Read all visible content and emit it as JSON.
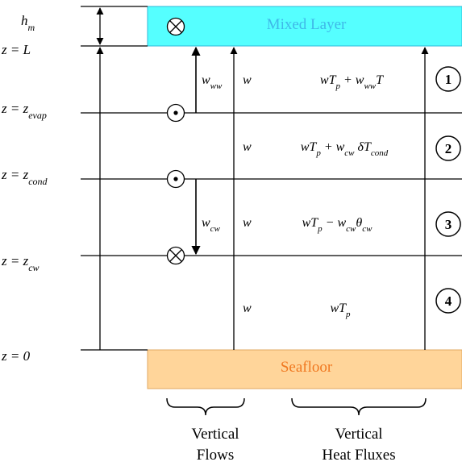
{
  "diagram": {
    "colors": {
      "mixed_layer": "#55ffff",
      "mixed_layer_text": "#3fb8e8",
      "seafloor": "#ffd59a",
      "seafloor_border": "#e0a860",
      "seafloor_text": "#f07820",
      "line": "#000000"
    },
    "mixed_layer_label": "Mixed Layer",
    "seafloor_label": "Seafloor",
    "levels": {
      "hm": "h",
      "hm_sub": "m",
      "L": "z = L",
      "evap_main": "z = z",
      "evap_sub": "evap",
      "cond_main": "z = z",
      "cond_sub": "cond",
      "cw_main": "z = z",
      "cw_sub": "cw",
      "zero": "z = 0"
    },
    "flows": {
      "w_ww_main": "w",
      "w_ww_sub": "ww",
      "w_cw_main": "w",
      "w_cw_sub": "cw",
      "w": "w"
    },
    "fluxes": {
      "layer1": {
        "p1": "wT",
        "s1": "p",
        "p2": " + w",
        "s2": "ww",
        "p3": "T"
      },
      "layer2": {
        "p1": "wT",
        "s1": "p",
        "p2": " + w",
        "s2": "cw",
        "p3": " δT",
        "s3": "cond"
      },
      "layer3": {
        "p1": "wT",
        "s1": "p",
        "p2": " − w",
        "s2": "cw",
        "p3": "θ",
        "s3": "cw"
      },
      "layer4": {
        "p1": "wT",
        "s1": "p"
      }
    },
    "layer_numbers": [
      "1",
      "2",
      "3",
      "4"
    ],
    "captions": {
      "flows_line1": "Vertical",
      "flows_line2": "Flows",
      "fluxes_line1": "Vertical",
      "fluxes_line2": "Heat Fluxes"
    }
  }
}
